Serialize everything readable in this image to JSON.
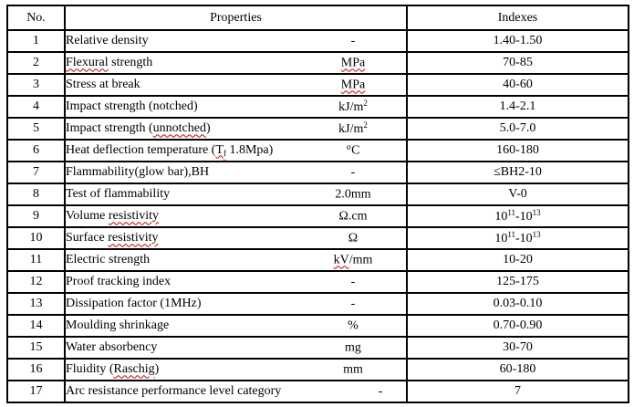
{
  "colors": {
    "background": "#ffffff",
    "border": "#000000",
    "text": "#000000",
    "spellcheck_squiggle": "#cc0000"
  },
  "table": {
    "headers": [
      "No.",
      "Properties",
      "Indexes"
    ],
    "rows": [
      {
        "no": "1",
        "property": [
          {
            "t": "Relative density"
          }
        ],
        "unit": [
          {
            "t": "-"
          }
        ],
        "index": [
          {
            "t": "1.40-1.50"
          }
        ]
      },
      {
        "no": "2",
        "property": [
          {
            "t": "Flexural",
            "wavy": true
          },
          {
            "t": " strength"
          }
        ],
        "unit": [
          {
            "t": "MPa",
            "wavy": true
          }
        ],
        "index": [
          {
            "t": "70-85"
          }
        ]
      },
      {
        "no": "3",
        "property": [
          {
            "t": "Stress at break"
          }
        ],
        "unit": [
          {
            "t": "MPa",
            "wavy": true
          }
        ],
        "index": [
          {
            "t": "40-60"
          }
        ]
      },
      {
        "no": "4",
        "property": [
          {
            "t": "Impact strength (notched)"
          }
        ],
        "unit": [
          {
            "t": "kJ/m"
          },
          {
            "t": "2",
            "s": "sup"
          }
        ],
        "index": [
          {
            "t": "1.4-2.1"
          }
        ]
      },
      {
        "no": "5",
        "property": [
          {
            "t": "Impact strength ("
          },
          {
            "t": "unnotched",
            "wavy": true
          },
          {
            "t": ")"
          }
        ],
        "unit": [
          {
            "t": "kJ/m"
          },
          {
            "t": "2",
            "s": "sup"
          }
        ],
        "index": [
          {
            "t": "5.0-7.0"
          }
        ]
      },
      {
        "no": "6",
        "property": [
          {
            "t": "Heat deflection temperature ("
          },
          {
            "t": "T",
            "wavy": true
          },
          {
            "t": "f",
            "s": "sub",
            "wavy": true
          },
          {
            "t": " 1.8Mpa)"
          }
        ],
        "unit": [
          {
            "t": "°C"
          }
        ],
        "index": [
          {
            "t": "160-180"
          }
        ]
      },
      {
        "no": "7",
        "property": [
          {
            "t": "Flammability(glow bar),BH"
          }
        ],
        "unit": [
          {
            "t": "-"
          }
        ],
        "index": [
          {
            "t": "≤BH2-10"
          }
        ]
      },
      {
        "no": "8",
        "property": [
          {
            "t": "Test of flammability"
          }
        ],
        "unit": [
          {
            "t": "2.0mm"
          }
        ],
        "index": [
          {
            "t": "V-0"
          }
        ]
      },
      {
        "no": "9",
        "property": [
          {
            "t": "Volume "
          },
          {
            "t": "resistivity",
            "wavy": true
          }
        ],
        "unit": [
          {
            "t": "Ω.cm"
          }
        ],
        "index": [
          {
            "t": "10"
          },
          {
            "t": "11",
            "s": "sup"
          },
          {
            "t": "-10"
          },
          {
            "t": "13",
            "s": "sup"
          }
        ]
      },
      {
        "no": "10",
        "property": [
          {
            "t": "Surface "
          },
          {
            "t": "resistivity",
            "wavy": true
          }
        ],
        "unit": [
          {
            "t": "Ω"
          }
        ],
        "index": [
          {
            "t": "10"
          },
          {
            "t": "11",
            "s": "sup"
          },
          {
            "t": "-10"
          },
          {
            "t": "13",
            "s": "sup"
          }
        ]
      },
      {
        "no": "11",
        "property": [
          {
            "t": "Electric strength"
          }
        ],
        "unit": [
          {
            "t": "kV",
            "wavy": true
          },
          {
            "t": "/mm"
          }
        ],
        "index": [
          {
            "t": "10-20"
          }
        ]
      },
      {
        "no": "12",
        "property": [
          {
            "t": "Proof tracking index"
          }
        ],
        "unit": [
          {
            "t": "-"
          }
        ],
        "index": [
          {
            "t": "125-175"
          }
        ]
      },
      {
        "no": "13",
        "property": [
          {
            "t": "Dissipation factor (1MHz)"
          }
        ],
        "unit": [
          {
            "t": "-"
          }
        ],
        "index": [
          {
            "t": "0.03-0.10"
          }
        ]
      },
      {
        "no": "14",
        "property": [
          {
            "t": "Moulding shrinkage"
          }
        ],
        "unit": [
          {
            "t": "%"
          }
        ],
        "index": [
          {
            "t": "0.70-0.90"
          }
        ]
      },
      {
        "no": "15",
        "property": [
          {
            "t": "Water absorbency"
          }
        ],
        "unit": [
          {
            "t": "mg"
          }
        ],
        "index": [
          {
            "t": "30-70"
          }
        ]
      },
      {
        "no": "16",
        "property": [
          {
            "t": "Fluidity ("
          },
          {
            "t": "Raschig",
            "wavy": true
          },
          {
            "t": ")"
          }
        ],
        "unit": [
          {
            "t": "mm"
          }
        ],
        "index": [
          {
            "t": "60-180"
          }
        ]
      },
      {
        "no": "17",
        "property": [
          {
            "t": "Arc resistance performance level category"
          }
        ],
        "unit": [
          {
            "t": "-"
          }
        ],
        "index": [
          {
            "t": "7"
          }
        ]
      }
    ]
  }
}
